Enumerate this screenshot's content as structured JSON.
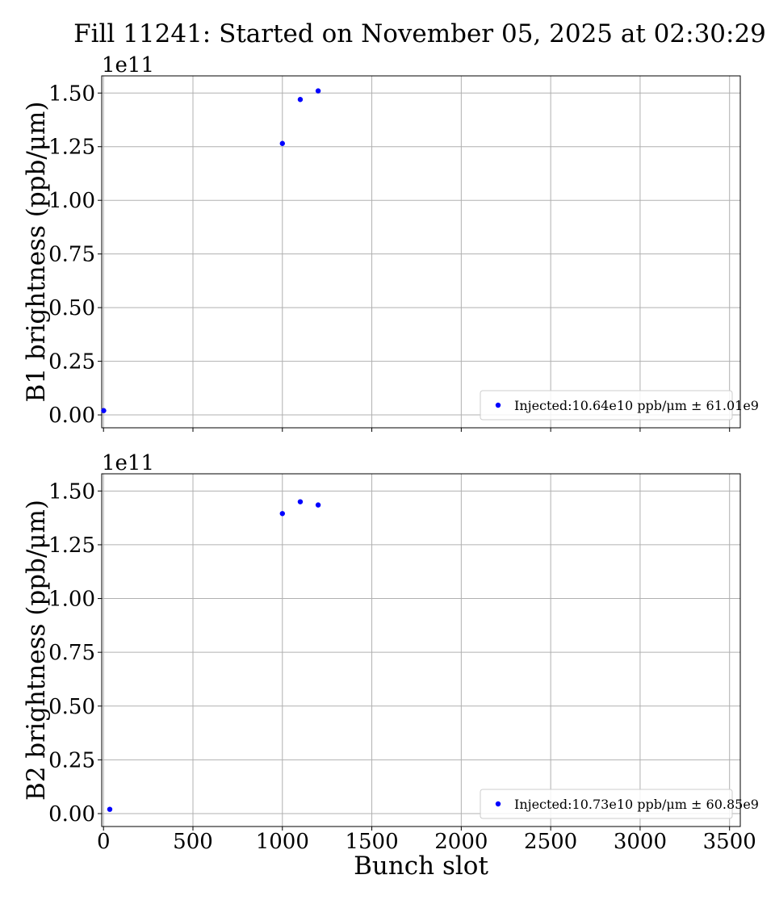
{
  "title": "Fill 11241: Started on November 05, 2025 at 02:30:29",
  "colors": {
    "marker": "#0000ff",
    "grid": "#b0b0b0",
    "axes": "#000000"
  },
  "chart_data": [
    {
      "type": "scatter",
      "ylabel": "B1 brightness (ppb/μm)",
      "offset_text": "1e11",
      "xlim": [
        -10,
        3560
      ],
      "ylim": [
        -0.06,
        1.58
      ],
      "x_ticks": [
        0,
        500,
        1000,
        1500,
        2000,
        2500,
        3000,
        3500
      ],
      "y_ticks": [
        0.0,
        0.25,
        0.5,
        0.75,
        1.0,
        1.25,
        1.5
      ],
      "y_tick_labels": [
        "0.00",
        "0.25",
        "0.50",
        "0.75",
        "1.00",
        "1.25",
        "1.50"
      ],
      "x_tick_labels_visible": false,
      "grid": true,
      "legend_position": "lower-right",
      "series": [
        {
          "name": "Injected:10.64e10 ppb/μm ± 61.01e9",
          "x": [
            1,
            1000,
            1100,
            1200
          ],
          "y": [
            0.02,
            1.265,
            1.47,
            1.51
          ]
        }
      ]
    },
    {
      "type": "scatter",
      "ylabel": "B2 brightness (ppb/μm)",
      "xlabel": "Bunch slot",
      "offset_text": "1e11",
      "xlim": [
        -10,
        3560
      ],
      "ylim": [
        -0.06,
        1.58
      ],
      "x_ticks": [
        0,
        500,
        1000,
        1500,
        2000,
        2500,
        3000,
        3500
      ],
      "x_tick_labels": [
        "0",
        "500",
        "1000",
        "1500",
        "2000",
        "2500",
        "3000",
        "3500"
      ],
      "y_ticks": [
        0.0,
        0.25,
        0.5,
        0.75,
        1.0,
        1.25,
        1.5
      ],
      "y_tick_labels": [
        "0.00",
        "0.25",
        "0.50",
        "0.75",
        "1.00",
        "1.25",
        "1.50"
      ],
      "x_tick_labels_visible": true,
      "grid": true,
      "legend_position": "lower-right",
      "series": [
        {
          "name": "Injected:10.73e10 ppb/μm ± 60.85e9",
          "x": [
            35,
            1000,
            1100,
            1200
          ],
          "y": [
            0.02,
            1.395,
            1.45,
            1.435
          ]
        }
      ]
    }
  ]
}
